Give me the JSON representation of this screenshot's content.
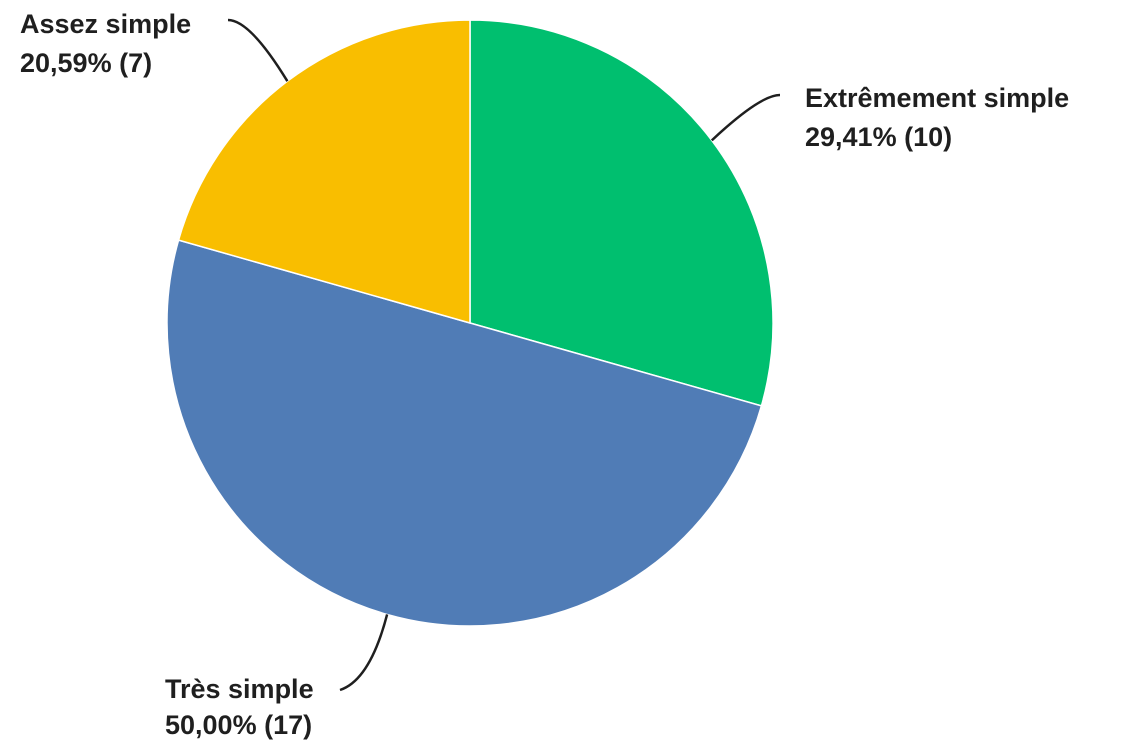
{
  "chart_data": {
    "type": "pie",
    "slices": [
      {
        "category": "Extrêmement simple",
        "value": 29.41,
        "count": 10,
        "label": "29,41% (10)",
        "color": "#00BF6F"
      },
      {
        "category": "Très simple",
        "value": 50.0,
        "count": 17,
        "label": "50,00% (17)",
        "color": "#507CB6"
      },
      {
        "category": "Assez simple",
        "value": 20.59,
        "count": 7,
        "label": "20,59% (7)",
        "color": "#F9BE00"
      }
    ],
    "start_angle_deg": 0,
    "direction": "clockwise"
  }
}
